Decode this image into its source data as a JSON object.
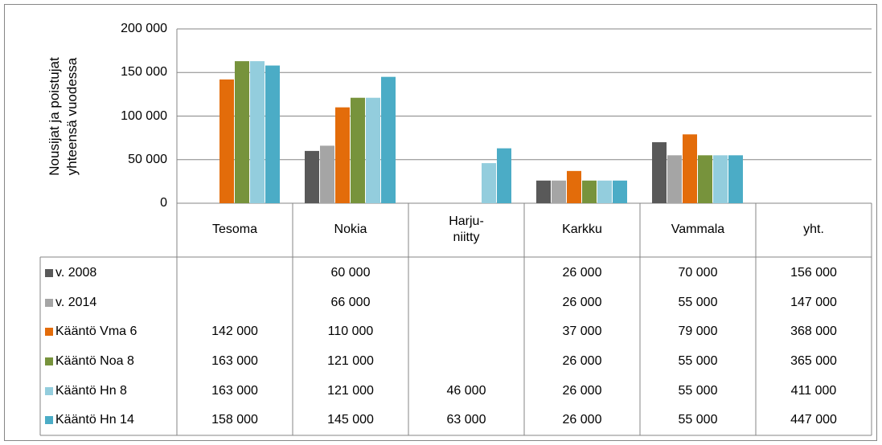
{
  "chart_data": {
    "type": "bar",
    "ylabel": [
      "Nousijat ja poistujat",
      "yhteensä vuodessa"
    ],
    "categories": [
      "Tesoma",
      "Nokia",
      "Harju-\nniitty",
      "Karkku",
      "Vammala"
    ],
    "total_label": "yht.",
    "ylim": [
      0,
      200000
    ],
    "yticks": [
      {
        "value": 0,
        "label": "0"
      },
      {
        "value": 50000,
        "label": "50 000"
      },
      {
        "value": 100000,
        "label": "100 000"
      },
      {
        "value": 150000,
        "label": "150 000"
      },
      {
        "value": 200000,
        "label": "200 000"
      }
    ],
    "grid": true,
    "series": [
      {
        "name": "v. 2008",
        "color": "#595959",
        "values": [
          null,
          60000,
          null,
          26000,
          70000
        ],
        "value_labels": [
          null,
          "60 000",
          null,
          "26 000",
          "70 000"
        ],
        "total": 156000,
        "total_label": "156 000"
      },
      {
        "name": "v. 2014",
        "color": "#a5a5a5",
        "values": [
          null,
          66000,
          null,
          26000,
          55000
        ],
        "value_labels": [
          null,
          "66 000",
          null,
          "26 000",
          "55 000"
        ],
        "total": 147000,
        "total_label": "147 000"
      },
      {
        "name": "Kääntö Vma 6",
        "color": "#e36c0a",
        "values": [
          142000,
          110000,
          null,
          37000,
          79000
        ],
        "value_labels": [
          "142 000",
          "110 000",
          null,
          "37 000",
          "79 000"
        ],
        "total": 368000,
        "total_label": "368 000"
      },
      {
        "name": "Kääntö Noa 8",
        "color": "#77933c",
        "values": [
          163000,
          121000,
          null,
          26000,
          55000
        ],
        "value_labels": [
          "163 000",
          "121 000",
          null,
          "26 000",
          "55 000"
        ],
        "total": 365000,
        "total_label": "365 000"
      },
      {
        "name": "Kääntö Hn 8",
        "color": "#93cddd",
        "values": [
          163000,
          121000,
          46000,
          26000,
          55000
        ],
        "value_labels": [
          "163 000",
          "121 000",
          "46 000",
          "26 000",
          "55 000"
        ],
        "total": 411000,
        "total_label": "411 000"
      },
      {
        "name": "Kääntö Hn 14",
        "color": "#4bacc6",
        "values": [
          158000,
          145000,
          63000,
          26000,
          55000
        ],
        "value_labels": [
          "158 000",
          "145 000",
          "63 000",
          "26 000",
          "55 000"
        ],
        "total": 447000,
        "total_label": "447 000"
      }
    ]
  }
}
